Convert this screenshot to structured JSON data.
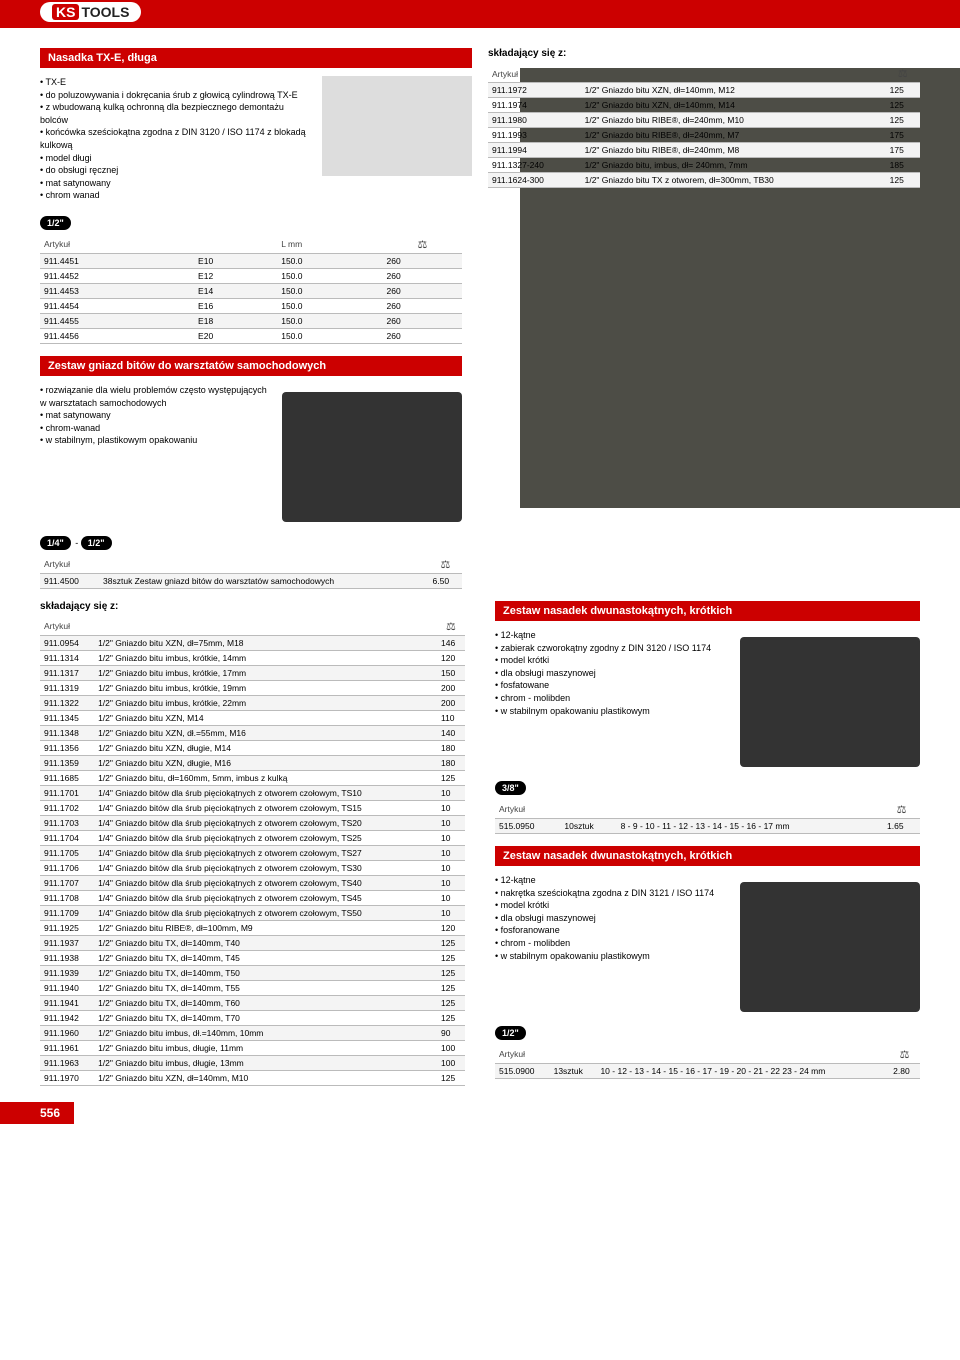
{
  "logo": {
    "brand1": "KS",
    "brand2": "TOOLS"
  },
  "s1": {
    "title": "Nasadka TX-E, długa",
    "bullets": [
      "TX-E",
      "do poluzowywania i dokręcania śrub z głowicą cylindrową TX-E",
      "z wbudowaną kulką ochronną dla bezpiecznego demontażu bolców",
      "końcówka sześciokątna zgodna z DIN 3120 / ISO 1174 z blokadą kulkową",
      "model długi",
      "do obsługi ręcznej",
      "mat satynowany",
      "chrom wanad"
    ],
    "drive": "1/2\"",
    "cols": [
      "Artykuł",
      "",
      "L mm",
      ""
    ],
    "rows": [
      [
        "911.4451",
        "E10",
        "150.0",
        "260"
      ],
      [
        "911.4452",
        "E12",
        "150.0",
        "260"
      ],
      [
        "911.4453",
        "E14",
        "150.0",
        "260"
      ],
      [
        "911.4454",
        "E16",
        "150.0",
        "260"
      ],
      [
        "911.4455",
        "E18",
        "150.0",
        "260"
      ],
      [
        "911.4456",
        "E20",
        "150.0",
        "260"
      ]
    ]
  },
  "s2": {
    "header": "składający się z:",
    "cols": [
      "Artykuł",
      "",
      ""
    ],
    "rows": [
      [
        "911.1972",
        "1/2\" Gniazdo bitu XZN, dł=140mm, M12",
        "125"
      ],
      [
        "911.1974",
        "1/2\" Gniazdo bitu XZN, dł=140mm, M14",
        "125"
      ],
      [
        "911.1980",
        "1/2\" Gniazdo bitu RIBE®, dł=240mm, M10",
        "125"
      ],
      [
        "911.1993",
        "1/2\" Gniazdo bitu RIBE®, dł=240mm, M7",
        "175"
      ],
      [
        "911.1994",
        "1/2\" Gniazdo bitu RIBE®, dł=240mm, M8",
        "175"
      ],
      [
        "911.1327-240",
        "1/2\" Gniazdo bitu, imbus, dł= 240mm, 7mm",
        "185"
      ],
      [
        "911.1624-300",
        "1/2\" Gniazdo bitu TX z otworem, dł=300mm, TB30",
        "125"
      ]
    ]
  },
  "s3": {
    "title": "Zestaw gniazd bitów do warsztatów samochodowych",
    "bullets": [
      "rozwiązanie dla wielu problemów często występujących w warsztatach samochodowych",
      "mat satynowany",
      "chrom-wanad",
      "w stabilnym, plastikowym opakowaniu"
    ],
    "drive1": "1/4\"",
    "drive2": "1/2\"",
    "cols": [
      "Artykuł",
      "",
      ""
    ],
    "rows": [
      [
        "911.4500",
        "38sztuk Zestaw gniazd bitów do warsztatów samochodowych",
        "6.50"
      ]
    ]
  },
  "s4": {
    "header": "składający się z:",
    "cols": [
      "Artykuł",
      "",
      ""
    ],
    "rows": [
      [
        "911.0954",
        "1/2\" Gniazdo bitu XZN, dł=75mm, M18",
        "146"
      ],
      [
        "911.1314",
        "1/2\" Gniazdo bitu imbus, krótkie, 14mm",
        "120"
      ],
      [
        "911.1317",
        "1/2\" Gniazdo bitu imbus, krótkie, 17mm",
        "150"
      ],
      [
        "911.1319",
        "1/2\" Gniazdo bitu imbus, krótkie, 19mm",
        "200"
      ],
      [
        "911.1322",
        "1/2\" Gniazdo bitu imbus, krótkie, 22mm",
        "200"
      ],
      [
        "911.1345",
        "1/2\" Gniazdo bitu XZN, M14",
        "110"
      ],
      [
        "911.1348",
        "1/2\" Gniazdo bitu XZN, dł.=55mm, M16",
        "140"
      ],
      [
        "911.1356",
        "1/2\" Gniazdo bitu XZN, długie, M14",
        "180"
      ],
      [
        "911.1359",
        "1/2\" Gniazdo bitu XZN, długie, M16",
        "180"
      ],
      [
        "911.1685",
        "1/2\" Gniazdo bitu, dł=160mm, 5mm, imbus z kulką",
        "125"
      ],
      [
        "911.1701",
        "1/4\" Gniazdo bitów dla śrub pięciokątnych z otworem czołowym, TS10",
        "10"
      ],
      [
        "911.1702",
        "1/4\" Gniazdo bitów dla śrub pięciokątnych z otworem czołowym, TS15",
        "10"
      ],
      [
        "911.1703",
        "1/4\" Gniazdo bitów dla śrub pięciokątnych z otworem czołowym, TS20",
        "10"
      ],
      [
        "911.1704",
        "1/4\" Gniazdo bitów dla śrub pięciokątnych z otworem czołowym, TS25",
        "10"
      ],
      [
        "911.1705",
        "1/4\" Gniazdo bitów dla śrub pięciokątnych z otworem czołowym, TS27",
        "10"
      ],
      [
        "911.1706",
        "1/4\" Gniazdo bitów dla śrub pięciokątnych z otworem czołowym, TS30",
        "10"
      ],
      [
        "911.1707",
        "1/4\" Gniazdo bitów dla śrub pięciokątnych z otworem czołowym, TS40",
        "10"
      ],
      [
        "911.1708",
        "1/4\" Gniazdo bitów dla śrub pięciokątnych z otworem czołowym, TS45",
        "10"
      ],
      [
        "911.1709",
        "1/4\" Gniazdo bitów dla śrub pięciokątnych z otworem czołowym, TS50",
        "10"
      ],
      [
        "911.1925",
        "1/2\" Gniazdo bitu RIBE®, dł=100mm, M9",
        "120"
      ],
      [
        "911.1937",
        "1/2\" Gniazdo bitu TX, dł=140mm, T40",
        "125"
      ],
      [
        "911.1938",
        "1/2\" Gniazdo bitu TX, dł=140mm, T45",
        "125"
      ],
      [
        "911.1939",
        "1/2\" Gniazdo bitu TX, dł=140mm, T50",
        "125"
      ],
      [
        "911.1940",
        "1/2\" Gniazdo bitu TX, dł=140mm, T55",
        "125"
      ],
      [
        "911.1941",
        "1/2\" Gniazdo bitu TX, dł=140mm, T60",
        "125"
      ],
      [
        "911.1942",
        "1/2\" Gniazdo bitu TX, dł=140mm, T70",
        "125"
      ],
      [
        "911.1960",
        "1/2\" Gniazdo bitu imbus, dł.=140mm, 10mm",
        "90"
      ],
      [
        "911.1961",
        "1/2\" Gniazdo bitu imbus, długie, 11mm",
        "100"
      ],
      [
        "911.1963",
        "1/2\" Gniazdo bitu imbus, długie, 13mm",
        "100"
      ],
      [
        "911.1970",
        "1/2\" Gniazdo bitu XZN, dł=140mm, M10",
        "125"
      ]
    ]
  },
  "s5": {
    "title": "Zestaw nasadek dwunastokątnych, krótkich",
    "bullets": [
      "12-kątne",
      "zabierak czworokątny zgodny z DIN 3120 / ISO 1174",
      "model krótki",
      "dla obsługi maszynowej",
      "fosfatowane",
      "chrom - molibden",
      "w stabilnym opakowaniu plastikowym"
    ],
    "drive": "3/8\"",
    "cols": [
      "Artykuł",
      "",
      "",
      ""
    ],
    "rows": [
      [
        "515.0950",
        "10sztuk",
        "8 - 9 - 10 - 11 - 12 - 13 - 14 - 15 - 16 - 17 mm",
        "1.65"
      ]
    ]
  },
  "s6": {
    "title": "Zestaw nasadek dwunastokątnych, krótkich",
    "bullets": [
      "12-kątne",
      "nakrętka sześciokątna zgodna z DIN 3121 / ISO 1174",
      "model krótki",
      "dla obsługi maszynowej",
      "fosforanowane",
      "chrom - molibden",
      "w stabilnym opakowaniu plastikowym"
    ],
    "drive": "1/2\"",
    "cols": [
      "Artykuł",
      "",
      "",
      ""
    ],
    "rows": [
      [
        "515.0900",
        "13sztuk",
        "10 - 12 - 13 - 14 - 15 - 16 - 17 - 19 - 20 - 21 - 22 23 - 24 mm",
        "2.80"
      ]
    ]
  },
  "pageNum": "556"
}
